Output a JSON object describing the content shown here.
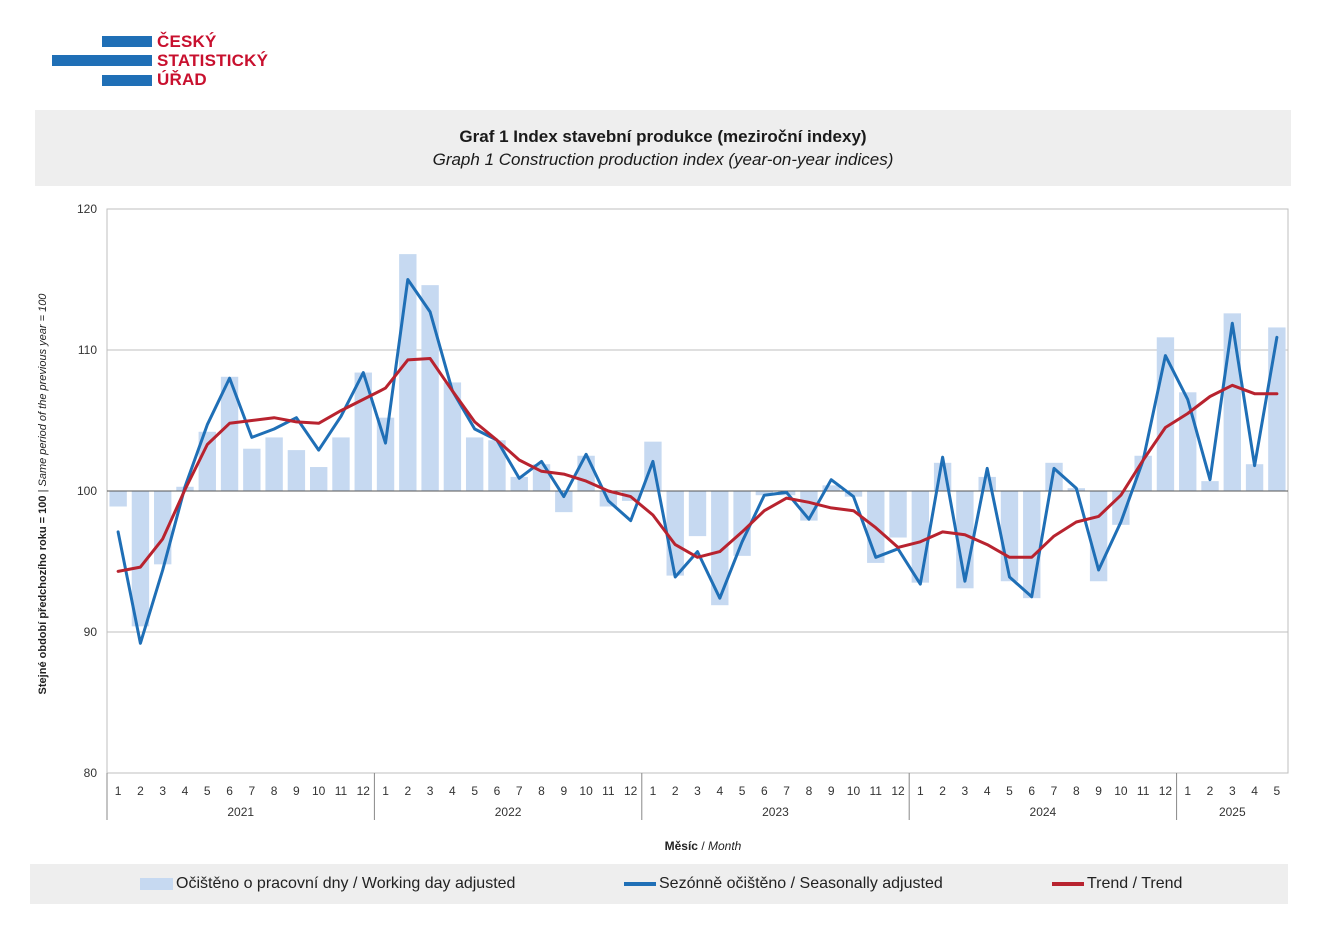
{
  "logo": {
    "line1": "ČESKÝ",
    "line2": "STATISTICKÝ",
    "line3": "ÚŘAD",
    "bar_color": "#1f6fb6",
    "text_color": "#c8102e"
  },
  "colors": {
    "bars": "#c6d9f1",
    "seasonal": "#1f6fb6",
    "trend": "#b8232f",
    "grid": "#bfbfbf",
    "title_bg": "#eeeeee"
  },
  "chart_data": {
    "type": "bar",
    "title": "Graf 1 Index stavební produkce (meziroční indexy)",
    "subtitle": "Graph 1 Construction production index (year-on-year indices)",
    "ylabel_bold": "Stejné období předchozího roku = 100",
    "ylabel_sep": " | ",
    "ylabel_italic": "Same period of the previous year = 100",
    "xlabel_bold": "Měsíc",
    "xlabel_sep": " / ",
    "xlabel_italic": "Month",
    "ylim": [
      80,
      120
    ],
    "yticks": [
      80,
      90,
      100,
      110,
      120
    ],
    "baseline": 100,
    "grid": true,
    "legend_position": "bottom",
    "years": [
      {
        "label": "2021",
        "months": 12
      },
      {
        "label": "2022",
        "months": 12
      },
      {
        "label": "2023",
        "months": 12
      },
      {
        "label": "2024",
        "months": 12
      },
      {
        "label": "2025",
        "months": 5
      }
    ],
    "categories": [
      "1",
      "2",
      "3",
      "4",
      "5",
      "6",
      "7",
      "8",
      "9",
      "10",
      "11",
      "12",
      "1",
      "2",
      "3",
      "4",
      "5",
      "6",
      "7",
      "8",
      "9",
      "10",
      "11",
      "12",
      "1",
      "2",
      "3",
      "4",
      "5",
      "6",
      "7",
      "8",
      "9",
      "10",
      "11",
      "12",
      "1",
      "2",
      "3",
      "4",
      "5",
      "6",
      "7",
      "8",
      "9",
      "10",
      "11",
      "12",
      "1",
      "2",
      "3",
      "4",
      "5"
    ],
    "series": [
      {
        "name": "Očištěno o pracovní dny / Working day adjusted",
        "kind": "bar",
        "values": [
          98.9,
          90.4,
          94.8,
          100.3,
          104.2,
          108.1,
          103.0,
          103.8,
          102.9,
          101.7,
          103.8,
          108.4,
          105.2,
          116.8,
          114.6,
          107.7,
          103.8,
          103.6,
          101.0,
          101.9,
          98.5,
          102.5,
          98.9,
          99.3,
          103.5,
          94.0,
          96.8,
          91.9,
          95.4,
          99.7,
          99.7,
          97.9,
          100.4,
          99.6,
          94.9,
          96.7,
          93.5,
          102.0,
          93.1,
          101.0,
          93.6,
          92.4,
          102.0,
          100.2,
          93.6,
          97.6,
          102.5,
          110.9,
          107.0,
          100.7,
          112.6,
          101.9,
          111.6
        ]
      },
      {
        "name": "Sezónně očištěno / Seasonally adjusted",
        "kind": "line",
        "values": [
          97.1,
          89.2,
          94.4,
          100.3,
          104.7,
          108.0,
          103.8,
          104.4,
          105.2,
          102.9,
          105.3,
          108.4,
          103.4,
          115.0,
          112.7,
          107.1,
          104.4,
          103.6,
          100.9,
          102.1,
          99.6,
          102.6,
          99.3,
          97.9,
          102.1,
          93.9,
          95.7,
          92.4,
          96.4,
          99.7,
          99.9,
          98.0,
          100.8,
          99.6,
          95.3,
          95.9,
          93.4,
          102.4,
          93.6,
          101.6,
          93.9,
          92.5,
          101.6,
          100.2,
          94.4,
          97.8,
          102.2,
          109.6,
          106.5,
          100.8,
          111.9,
          101.8,
          110.9
        ]
      },
      {
        "name": "Trend / Trend",
        "kind": "line",
        "values": [
          94.3,
          94.6,
          96.6,
          100.1,
          103.3,
          104.8,
          105.0,
          105.2,
          104.9,
          104.8,
          105.7,
          106.5,
          107.3,
          109.3,
          109.4,
          107.1,
          104.9,
          103.6,
          102.2,
          101.4,
          101.2,
          100.7,
          100.0,
          99.6,
          98.3,
          96.2,
          95.3,
          95.7,
          97.1,
          98.6,
          99.5,
          99.2,
          98.8,
          98.6,
          97.4,
          96.0,
          96.4,
          97.1,
          96.9,
          96.2,
          95.3,
          95.3,
          96.8,
          97.8,
          98.2,
          99.7,
          102.2,
          104.5,
          105.5,
          106.7,
          107.5,
          106.9,
          106.9
        ]
      }
    ]
  }
}
